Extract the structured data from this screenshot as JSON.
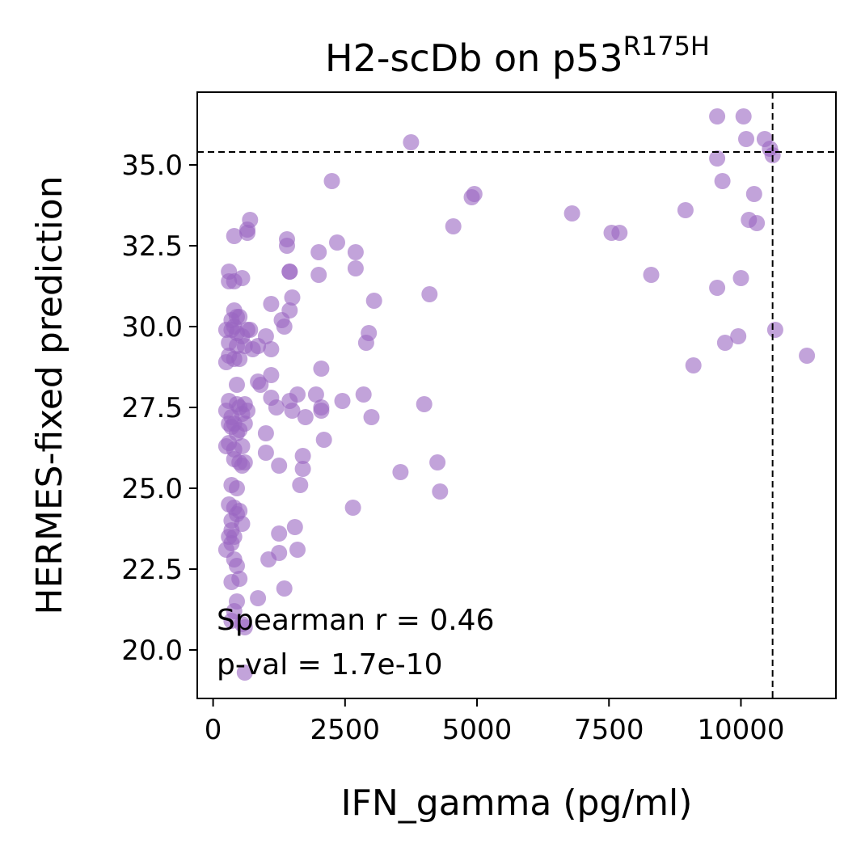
{
  "chart_data": {
    "type": "scatter",
    "title": "H2-scDb on p53",
    "title_superscript": "R175H",
    "xlabel": "IFN_gamma (pg/ml)",
    "ylabel": "HERMES-fixed prediction",
    "xlim": [
      -300,
      11800
    ],
    "ylim": [
      18.5,
      37.25
    ],
    "xticks": [
      0,
      2500,
      5000,
      7500,
      10000
    ],
    "yticks": [
      20.0,
      22.5,
      25.0,
      27.5,
      30.0,
      32.5,
      35.0
    ],
    "xtick_labels": [
      "0",
      "2500",
      "5000",
      "7500",
      "10000"
    ],
    "ytick_labels": [
      "20.0",
      "22.5",
      "25.0",
      "27.5",
      "30.0",
      "32.5",
      "35.0"
    ],
    "point_color": "#9a66c2",
    "point_alpha": 0.6,
    "vline_x": 10600,
    "hline_y": 35.4,
    "annotations": [
      "Spearman r = 0.46",
      "p-val = 1.7e-10"
    ],
    "grid": false,
    "points": [
      [
        9550,
        36.5
      ],
      [
        10050,
        36.5
      ],
      [
        3750,
        35.7
      ],
      [
        10100,
        35.8
      ],
      [
        10450,
        35.8
      ],
      [
        9550,
        35.2
      ],
      [
        10600,
        35.3
      ],
      [
        10550,
        35.5
      ],
      [
        2250,
        34.5
      ],
      [
        9650,
        34.5
      ],
      [
        4950,
        34.1
      ],
      [
        4900,
        34.0
      ],
      [
        10250,
        34.1
      ],
      [
        6800,
        33.5
      ],
      [
        8950,
        33.6
      ],
      [
        10150,
        33.3
      ],
      [
        10300,
        33.2
      ],
      [
        4550,
        33.1
      ],
      [
        7550,
        32.9
      ],
      [
        7700,
        32.9
      ],
      [
        700,
        33.3
      ],
      [
        650,
        33.0
      ],
      [
        400,
        32.8
      ],
      [
        650,
        32.9
      ],
      [
        1400,
        32.7
      ],
      [
        1400,
        32.5
      ],
      [
        2350,
        32.6
      ],
      [
        2000,
        32.3
      ],
      [
        2700,
        32.3
      ],
      [
        8300,
        31.6
      ],
      [
        10000,
        31.5
      ],
      [
        9550,
        31.2
      ],
      [
        1450,
        31.7
      ],
      [
        1450,
        31.7
      ],
      [
        2000,
        31.6
      ],
      [
        2700,
        31.8
      ],
      [
        300,
        31.7
      ],
      [
        300,
        31.4
      ],
      [
        400,
        31.4
      ],
      [
        550,
        31.5
      ],
      [
        4100,
        31.0
      ],
      [
        3050,
        30.8
      ],
      [
        1100,
        30.7
      ],
      [
        1450,
        30.5
      ],
      [
        1500,
        30.9
      ],
      [
        400,
        30.5
      ],
      [
        450,
        30.3
      ],
      [
        350,
        30.2
      ],
      [
        500,
        30.3
      ],
      [
        400,
        30.0
      ],
      [
        1350,
        30.0
      ],
      [
        1300,
        30.2
      ],
      [
        10650,
        29.9
      ],
      [
        9950,
        29.7
      ],
      [
        9700,
        29.5
      ],
      [
        2950,
        29.8
      ],
      [
        2900,
        29.5
      ],
      [
        250,
        29.9
      ],
      [
        350,
        29.9
      ],
      [
        450,
        29.8
      ],
      [
        550,
        29.7
      ],
      [
        650,
        29.9
      ],
      [
        700,
        29.9
      ],
      [
        300,
        29.5
      ],
      [
        450,
        29.4
      ],
      [
        600,
        29.4
      ],
      [
        750,
        29.3
      ],
      [
        850,
        29.4
      ],
      [
        1000,
        29.7
      ],
      [
        1100,
        29.3
      ],
      [
        300,
        29.1
      ],
      [
        400,
        29.0
      ],
      [
        250,
        28.9
      ],
      [
        500,
        29.0
      ],
      [
        11250,
        29.1
      ],
      [
        9100,
        28.8
      ],
      [
        2050,
        28.7
      ],
      [
        450,
        28.2
      ],
      [
        850,
        28.3
      ],
      [
        900,
        28.2
      ],
      [
        1100,
        28.5
      ],
      [
        1100,
        27.8
      ],
      [
        1200,
        27.5
      ],
      [
        1450,
        27.7
      ],
      [
        1500,
        27.4
      ],
      [
        1600,
        27.9
      ],
      [
        1750,
        27.2
      ],
      [
        1950,
        27.9
      ],
      [
        2050,
        27.5
      ],
      [
        2050,
        27.4
      ],
      [
        2450,
        27.7
      ],
      [
        2850,
        27.9
      ],
      [
        3000,
        27.2
      ],
      [
        4000,
        27.6
      ],
      [
        300,
        27.7
      ],
      [
        250,
        27.4
      ],
      [
        350,
        27.2
      ],
      [
        450,
        27.6
      ],
      [
        500,
        27.5
      ],
      [
        550,
        27.3
      ],
      [
        600,
        27.6
      ],
      [
        650,
        27.4
      ],
      [
        300,
        27.0
      ],
      [
        350,
        26.9
      ],
      [
        400,
        27.0
      ],
      [
        450,
        26.7
      ],
      [
        500,
        26.8
      ],
      [
        600,
        27.0
      ],
      [
        250,
        26.3
      ],
      [
        300,
        26.4
      ],
      [
        400,
        26.2
      ],
      [
        550,
        26.3
      ],
      [
        1000,
        26.7
      ],
      [
        2100,
        26.5
      ],
      [
        1000,
        26.1
      ],
      [
        1700,
        26.0
      ],
      [
        400,
        25.9
      ],
      [
        500,
        25.8
      ],
      [
        550,
        25.7
      ],
      [
        600,
        25.8
      ],
      [
        1250,
        25.7
      ],
      [
        1700,
        25.6
      ],
      [
        4250,
        25.8
      ],
      [
        3550,
        25.5
      ],
      [
        1650,
        25.1
      ],
      [
        350,
        25.1
      ],
      [
        450,
        25.0
      ],
      [
        4300,
        24.9
      ],
      [
        2650,
        24.4
      ],
      [
        300,
        24.5
      ],
      [
        400,
        24.4
      ],
      [
        450,
        24.2
      ],
      [
        500,
        24.3
      ],
      [
        350,
        24.0
      ],
      [
        550,
        23.9
      ],
      [
        350,
        23.7
      ],
      [
        1550,
        23.8
      ],
      [
        1250,
        23.6
      ],
      [
        300,
        23.5
      ],
      [
        350,
        23.3
      ],
      [
        400,
        23.5
      ],
      [
        250,
        23.1
      ],
      [
        1250,
        23.0
      ],
      [
        1600,
        23.1
      ],
      [
        1050,
        22.8
      ],
      [
        450,
        22.6
      ],
      [
        400,
        22.8
      ],
      [
        500,
        22.2
      ],
      [
        350,
        22.1
      ],
      [
        1350,
        21.9
      ],
      [
        850,
        21.6
      ],
      [
        450,
        21.5
      ],
      [
        400,
        21.2
      ],
      [
        350,
        20.9
      ],
      [
        600,
        20.7
      ],
      [
        550,
        20.8
      ],
      [
        600,
        19.3
      ]
    ]
  }
}
